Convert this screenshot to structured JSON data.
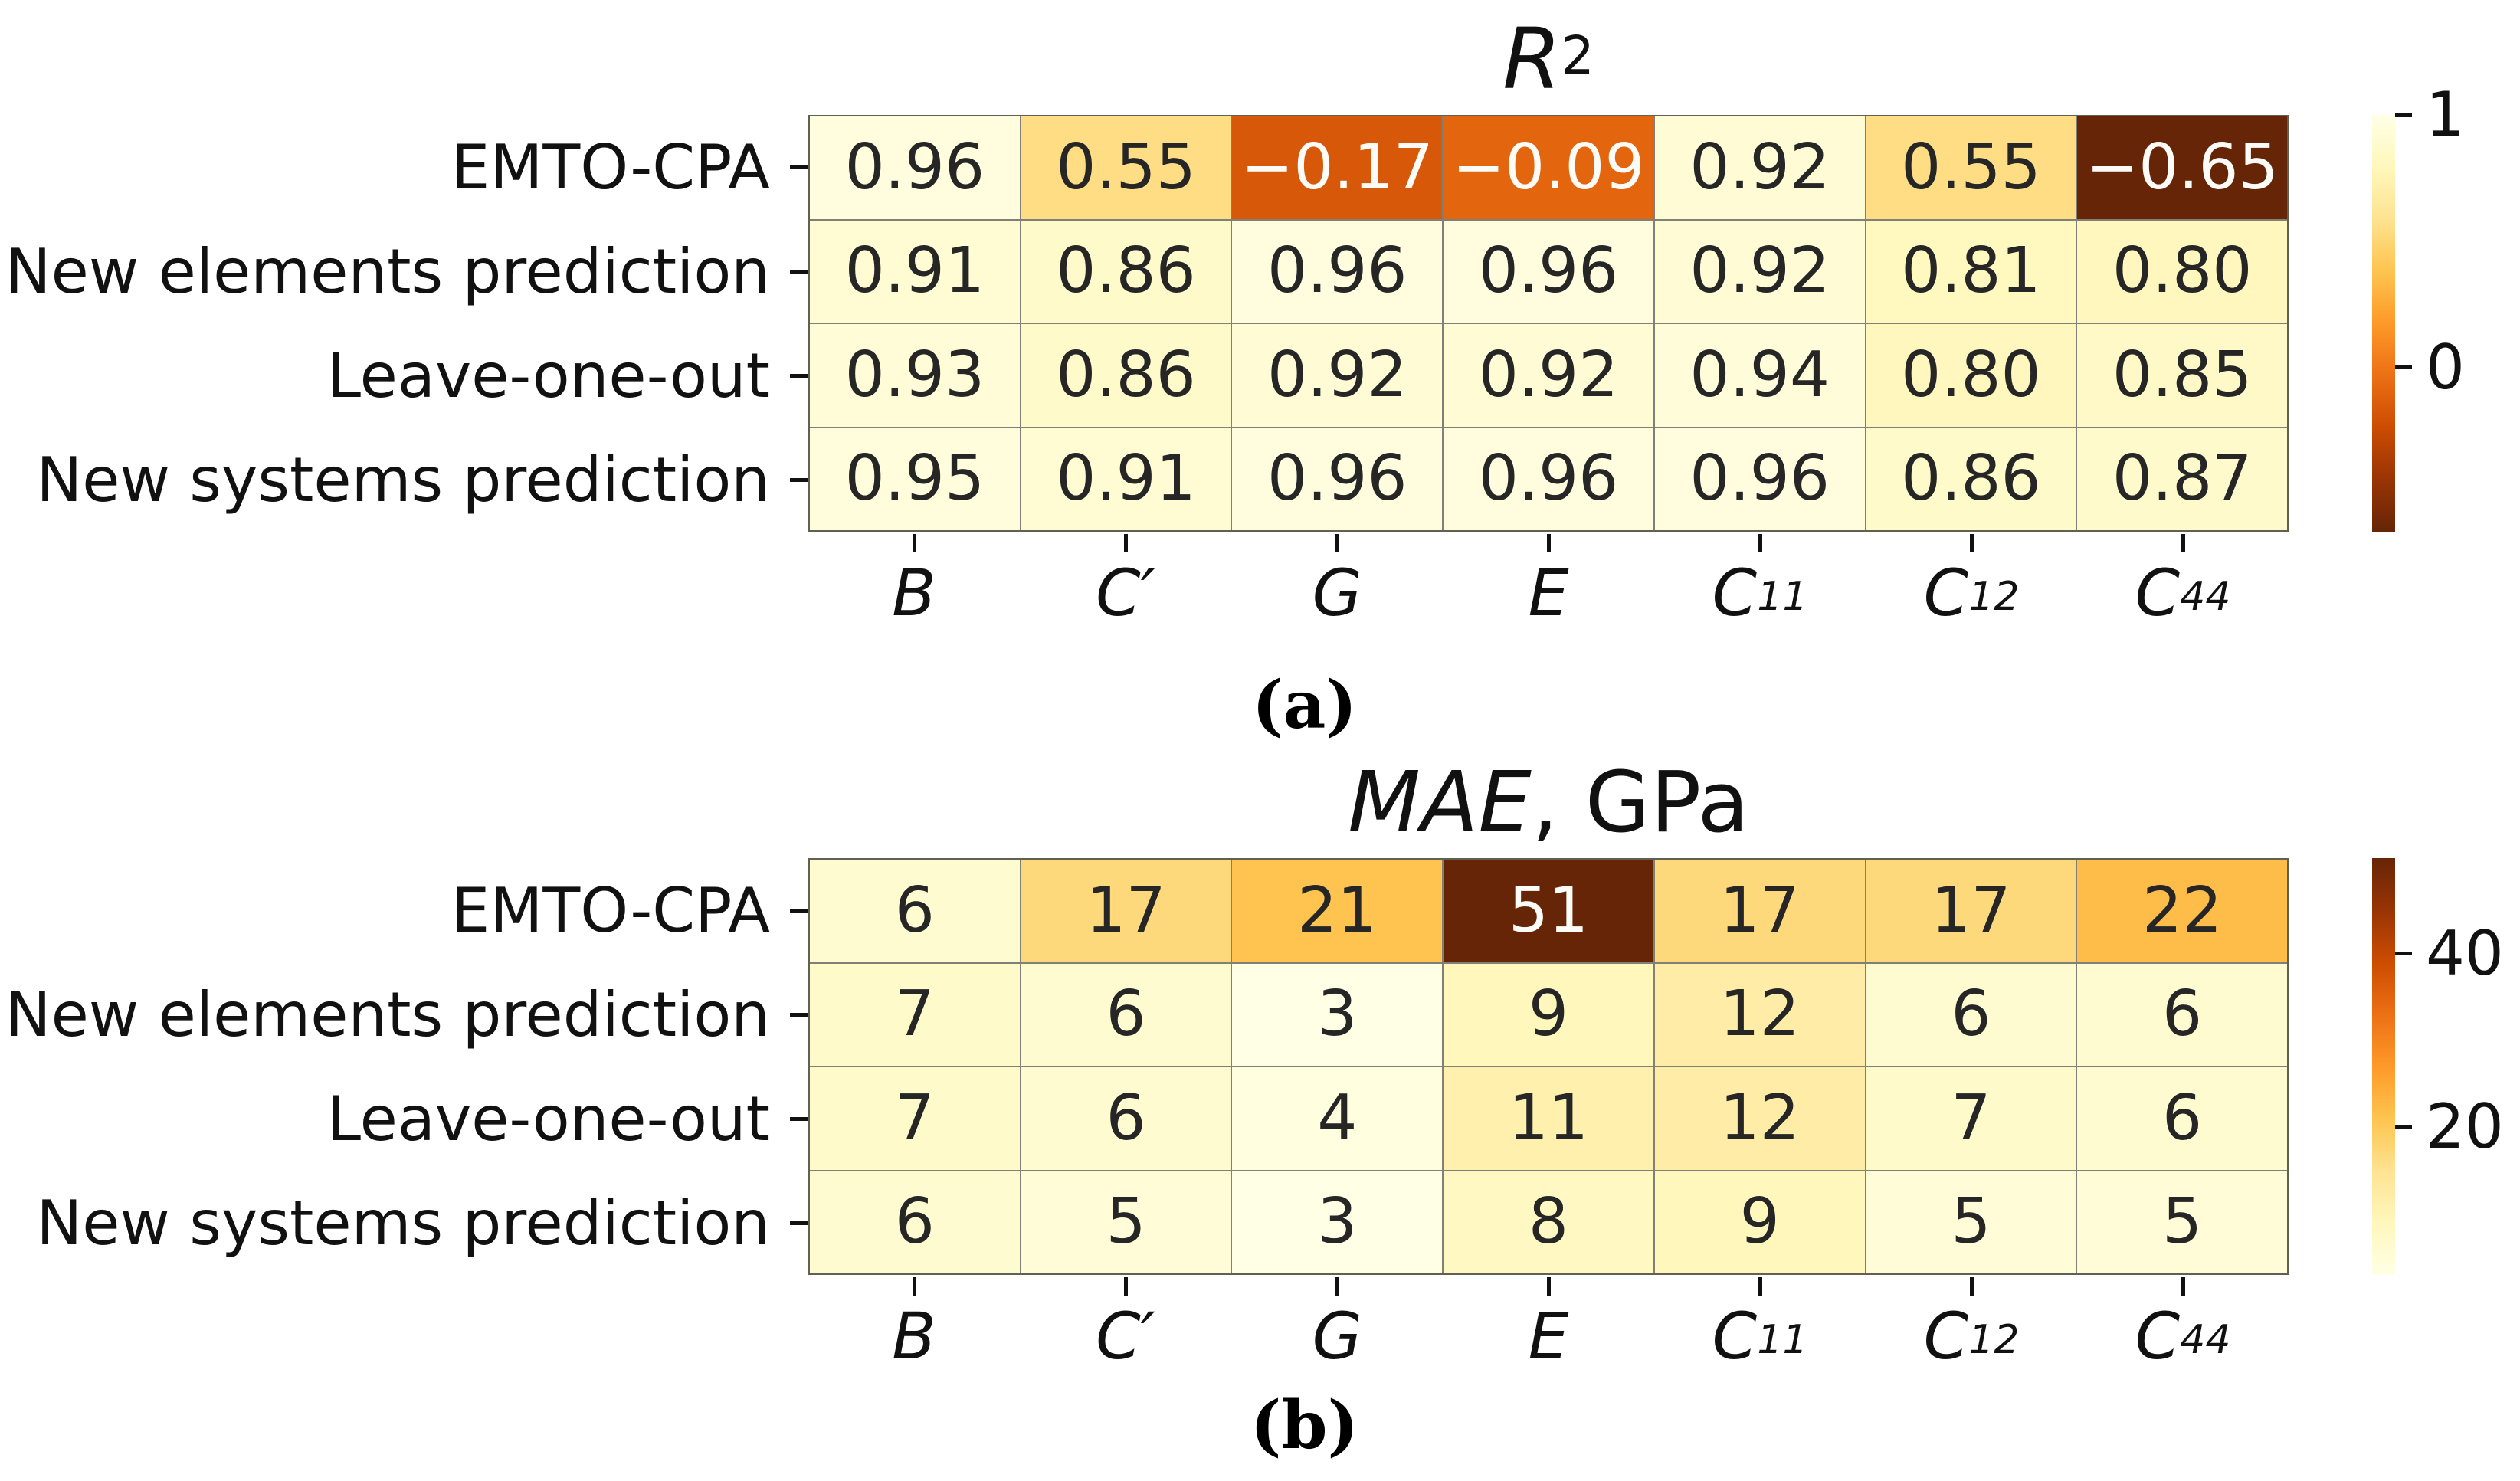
{
  "figure": {
    "caption_a": "(a)",
    "caption_b": "(b)"
  },
  "colormap": {
    "name": "YlOrBr",
    "anchors": [
      "#ffffe5",
      "#fff7bc",
      "#fee391",
      "#fec44f",
      "#fe9929",
      "#ec7014",
      "#cc4c02",
      "#993404",
      "#662506"
    ]
  },
  "chart_data": [
    {
      "type": "heatmap",
      "panel": "a",
      "title_math": "R",
      "title_sup": "2",
      "title_suffix": "",
      "rows": [
        "EMTO-CPA",
        "New elements prediction",
        "Leave-one-out",
        "New systems prediction"
      ],
      "columns": [
        {
          "base": "B",
          "sub": ""
        },
        {
          "base": "C′",
          "sub": ""
        },
        {
          "base": "G",
          "sub": ""
        },
        {
          "base": "E",
          "sub": ""
        },
        {
          "base": "C",
          "sub": "11"
        },
        {
          "base": "C",
          "sub": "12"
        },
        {
          "base": "C",
          "sub": "44"
        }
      ],
      "values": [
        [
          0.96,
          0.55,
          -0.17,
          -0.09,
          0.92,
          0.55,
          -0.65
        ],
        [
          0.91,
          0.86,
          0.96,
          0.96,
          0.92,
          0.81,
          0.8
        ],
        [
          0.93,
          0.86,
          0.92,
          0.92,
          0.94,
          0.8,
          0.85
        ],
        [
          0.95,
          0.91,
          0.96,
          0.96,
          0.96,
          0.86,
          0.87
        ]
      ],
      "value_decimals": 2,
      "vmin": -0.65,
      "vmax": 1.0,
      "dark_end": "low",
      "colorbar_ticks": [
        {
          "label": "1",
          "value": 1.0
        },
        {
          "label": "0",
          "value": 0.0
        }
      ]
    },
    {
      "type": "heatmap",
      "panel": "b",
      "title_math": "MAE",
      "title_sup": "",
      "title_suffix": ", GPa",
      "rows": [
        "EMTO-CPA",
        "New elements prediction",
        "Leave-one-out",
        "New systems prediction"
      ],
      "columns": [
        {
          "base": "B",
          "sub": ""
        },
        {
          "base": "C′",
          "sub": ""
        },
        {
          "base": "G",
          "sub": ""
        },
        {
          "base": "E",
          "sub": ""
        },
        {
          "base": "C",
          "sub": "11"
        },
        {
          "base": "C",
          "sub": "12"
        },
        {
          "base": "C",
          "sub": "44"
        }
      ],
      "values": [
        [
          6,
          17,
          21,
          51,
          17,
          17,
          22
        ],
        [
          7,
          6,
          3,
          9,
          12,
          6,
          6
        ],
        [
          7,
          6,
          4,
          11,
          12,
          7,
          6
        ],
        [
          6,
          5,
          3,
          8,
          9,
          5,
          5
        ]
      ],
      "value_decimals": 0,
      "vmin": 3,
      "vmax": 51,
      "dark_end": "high",
      "colorbar_ticks": [
        {
          "label": "40",
          "value": 40
        },
        {
          "label": "20",
          "value": 20
        }
      ]
    }
  ]
}
